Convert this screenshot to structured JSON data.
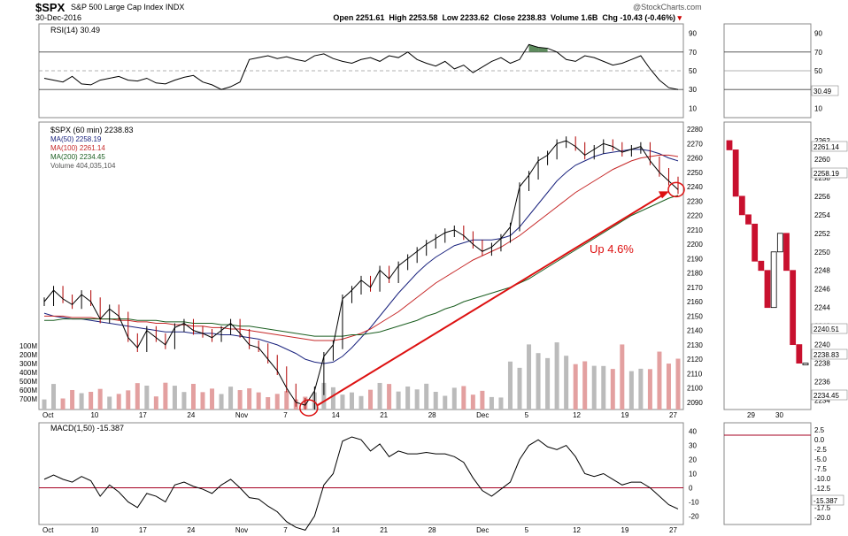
{
  "header": {
    "symbol": "$SPX",
    "name": "S&P 500 Large Cap Index  INDX",
    "date": "30-Dec-2016",
    "credit": "@StockCharts.com",
    "open": "Open 2251.61",
    "high": "High 2253.58",
    "low": "Low 2233.62",
    "close": "Close 2238.83",
    "volume": "Volume 1.6B",
    "chg": "Chg -10.43 (-0.46%)",
    "chg_arrow": "▾"
  },
  "rsi_legend": "RSI(14) 30.49",
  "price_legend": {
    "symbol": "$SPX (60 min) 2238.83",
    "ma50": "MA(50) 2258.19",
    "ma100": "MA(100) 2261.14",
    "ma200": "MA(200) 2234.45",
    "volume": "Volume 404,035,104"
  },
  "macd_legend": "MACD(1,50) -15.387",
  "annotation": "Up 4.6%",
  "colors": {
    "price": "#000000",
    "ma50": "#1a237e",
    "ma100": "#c62828",
    "ma200": "#1b5e20",
    "arrow": "#dd1111",
    "volume_up": "#bbbbbb",
    "volume_down": "#e3a0a0",
    "rsi_overbought_fill": "#5e8c5e",
    "rsi_oversold_fill": "#8a3b3b",
    "zero_line": "#a50021"
  },
  "chart_data": [
    {
      "type": "line",
      "name": "RSI panel",
      "yticks": [
        90,
        70,
        50,
        30,
        10
      ],
      "ylim": [
        0,
        100
      ],
      "series": [
        {
          "name": "RSI(14)",
          "values": [
            42,
            40,
            38,
            44,
            36,
            35,
            40,
            42,
            44,
            40,
            39,
            42,
            37,
            36,
            40,
            43,
            45,
            38,
            35,
            30,
            33,
            38,
            62,
            64,
            66,
            63,
            65,
            62,
            60,
            66,
            68,
            63,
            60,
            58,
            62,
            64,
            60,
            66,
            64,
            70,
            62,
            58,
            55,
            60,
            52,
            56,
            48,
            54,
            60,
            64,
            58,
            62,
            78,
            75,
            74,
            70,
            62,
            60,
            66,
            64,
            60,
            56,
            58,
            62,
            66,
            52,
            40,
            32,
            30
          ]
        }
      ]
    },
    {
      "type": "line",
      "name": "Price panel",
      "yticks": [
        2090,
        2100,
        2110,
        2120,
        2130,
        2140,
        2150,
        2160,
        2170,
        2180,
        2190,
        2200,
        2210,
        2220,
        2230,
        2240,
        2250,
        2260,
        2270,
        2280
      ],
      "ylim": [
        2085,
        2285
      ],
      "volume_ticks": [
        "700M",
        "600M",
        "500M",
        "400M",
        "300M",
        "200M",
        "100M"
      ],
      "xlabels": [
        "Oct",
        "10",
        "17",
        "24",
        "Nov",
        "7",
        "14",
        "21",
        "28",
        "Dec",
        "5",
        "12",
        "19",
        "27"
      ],
      "series": [
        {
          "name": "$SPX",
          "values": [
            2160,
            2168,
            2162,
            2158,
            2165,
            2160,
            2148,
            2155,
            2150,
            2135,
            2128,
            2140,
            2135,
            2130,
            2142,
            2145,
            2140,
            2138,
            2135,
            2140,
            2145,
            2138,
            2130,
            2128,
            2120,
            2112,
            2100,
            2090,
            2088,
            2098,
            2122,
            2130,
            2162,
            2168,
            2175,
            2170,
            2182,
            2176,
            2185,
            2190,
            2195,
            2200,
            2204,
            2208,
            2210,
            2206,
            2200,
            2195,
            2198,
            2204,
            2212,
            2240,
            2248,
            2258,
            2262,
            2270,
            2272,
            2268,
            2262,
            2266,
            2270,
            2268,
            2264,
            2266,
            2268,
            2258,
            2250,
            2244,
            2238
          ]
        },
        {
          "name": "MA(50)",
          "values": [
            2152,
            2150,
            2149,
            2148,
            2148,
            2147,
            2146,
            2145,
            2144,
            2143,
            2142,
            2141,
            2140,
            2139,
            2139,
            2139,
            2138,
            2138,
            2138,
            2137,
            2137,
            2136,
            2135,
            2134,
            2132,
            2130,
            2127,
            2124,
            2120,
            2118,
            2117,
            2118,
            2122,
            2128,
            2135,
            2142,
            2150,
            2158,
            2166,
            2173,
            2180,
            2186,
            2191,
            2195,
            2199,
            2201,
            2203,
            2203,
            2203,
            2204,
            2206,
            2212,
            2220,
            2228,
            2236,
            2244,
            2250,
            2255,
            2258,
            2261,
            2263,
            2264,
            2265,
            2266,
            2266,
            2265,
            2263,
            2260,
            2258
          ]
        },
        {
          "name": "MA(100)",
          "values": [
            2150,
            2150,
            2150,
            2149,
            2149,
            2149,
            2148,
            2148,
            2147,
            2147,
            2146,
            2146,
            2145,
            2145,
            2144,
            2144,
            2143,
            2143,
            2142,
            2142,
            2141,
            2141,
            2140,
            2139,
            2138,
            2137,
            2136,
            2135,
            2134,
            2133,
            2133,
            2133,
            2134,
            2136,
            2138,
            2141,
            2145,
            2149,
            2153,
            2158,
            2163,
            2168,
            2173,
            2177,
            2181,
            2185,
            2189,
            2192,
            2195,
            2198,
            2202,
            2206,
            2211,
            2216,
            2221,
            2226,
            2231,
            2236,
            2240,
            2244,
            2248,
            2252,
            2255,
            2258,
            2260,
            2261,
            2262,
            2262,
            2261
          ]
        },
        {
          "name": "MA(200)",
          "values": [
            2147,
            2147,
            2148,
            2148,
            2148,
            2148,
            2148,
            2148,
            2148,
            2148,
            2147,
            2147,
            2147,
            2146,
            2146,
            2146,
            2145,
            2145,
            2145,
            2144,
            2144,
            2143,
            2143,
            2142,
            2141,
            2140,
            2139,
            2138,
            2137,
            2136,
            2136,
            2136,
            2136,
            2137,
            2137,
            2138,
            2139,
            2141,
            2143,
            2145,
            2147,
            2150,
            2152,
            2155,
            2157,
            2160,
            2162,
            2164,
            2166,
            2168,
            2170,
            2173,
            2176,
            2180,
            2184,
            2188,
            2192,
            2196,
            2200,
            2204,
            2208,
            2212,
            2216,
            2220,
            2223,
            2226,
            2229,
            2232,
            2234
          ]
        }
      ]
    },
    {
      "type": "line",
      "name": "MACD panel",
      "yticks": [
        40,
        30,
        20,
        10,
        0,
        -10,
        -20
      ],
      "ylim": [
        -26,
        46
      ],
      "xlabels": [
        "Oct",
        "10",
        "17",
        "24",
        "Nov",
        "7",
        "14",
        "21",
        "28",
        "Dec",
        "5",
        "12",
        "19",
        "27"
      ],
      "series": [
        {
          "name": "MACD(1,50)",
          "values": [
            6,
            9,
            6,
            4,
            8,
            5,
            -6,
            2,
            -3,
            -10,
            -14,
            -4,
            -6,
            -10,
            2,
            4,
            1,
            -1,
            -4,
            2,
            6,
            0,
            -7,
            -8,
            -13,
            -17,
            -24,
            -28,
            -30,
            -20,
            2,
            10,
            33,
            36,
            34,
            26,
            31,
            22,
            26,
            24,
            24,
            25,
            24,
            24,
            22,
            18,
            7,
            -2,
            -6,
            -1,
            4,
            20,
            30,
            34,
            29,
            27,
            30,
            22,
            10,
            8,
            10,
            6,
            2,
            4,
            4,
            0,
            -6,
            -12,
            -15
          ]
        }
      ]
    },
    {
      "type": "line",
      "name": "Zoom price panel",
      "yticks": [
        2234,
        2236,
        2238,
        2240,
        2242,
        2244,
        2246,
        2248,
        2250,
        2252,
        2254,
        2256,
        2258,
        2260,
        2262
      ],
      "ylim": [
        2233,
        2264
      ],
      "xlabels": [
        "29",
        "30"
      ],
      "flags": [
        "2240.51",
        "2238.83",
        "2234.45",
        "2258.19",
        "2261.14"
      ],
      "series": [
        {
          "name": "$SPX",
          "values": [
            2261,
            2256,
            2254,
            2253,
            2249,
            2248,
            2244,
            2250,
            2252,
            2248,
            2240,
            2238,
            2238
          ]
        }
      ]
    },
    {
      "type": "line",
      "name": "Zoom RSI panel",
      "yticks": [
        90,
        70,
        50,
        30,
        10
      ],
      "flags": [
        "30.49"
      ]
    },
    {
      "type": "line",
      "name": "Zoom MACD panel",
      "yticks": [
        "2.5",
        "0.0",
        "-2.5",
        "-5.0",
        "-7.5",
        "-10.0",
        "-12.5",
        "-15.0",
        "-17.5",
        "-20.0"
      ],
      "flags": [
        "-15.387"
      ]
    }
  ]
}
